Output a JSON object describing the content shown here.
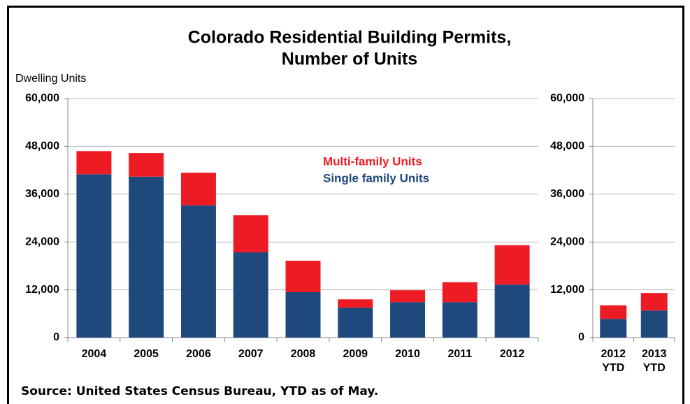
{
  "chart_data": [
    {
      "type": "stacked_bar",
      "title": [
        "Colorado Residential Building Permits,",
        "Number of Units"
      ],
      "y_label": "Dwelling Units",
      "categories": [
        "2004",
        "2005",
        "2006",
        "2007",
        "2008",
        "2009",
        "2010",
        "2011",
        "2012"
      ],
      "series": [
        {
          "name": "Single family Units",
          "color": "#1f497d",
          "values": [
            41000,
            40400,
            33200,
            21400,
            11400,
            7500,
            8900,
            8900,
            13300
          ]
        },
        {
          "name": "Multi-family Units",
          "color": "#ed1c24",
          "values": [
            5800,
            5900,
            8200,
            9300,
            7900,
            2100,
            3000,
            5000,
            9900
          ]
        }
      ],
      "ylim": [
        0,
        60000
      ],
      "yticks": [
        0,
        {
          "value": 12000,
          "label": "12,000"
        },
        {
          "value": 24000,
          "label": "24,000"
        },
        {
          "value": 36000,
          "label": "36,000"
        },
        {
          "value": 48000,
          "label": "48,000"
        },
        {
          "value": 60000,
          "label": "60,000"
        }
      ],
      "grid": true
    },
    {
      "type": "stacked_bar",
      "categories": [
        "2012 YTD",
        "2013 YTD"
      ],
      "series": [
        {
          "color": "#1f497d",
          "values": [
            4700,
            6800
          ]
        },
        {
          "color": "#ed1c24",
          "values": [
            3400,
            4400
          ]
        }
      ],
      "ylim": [
        0,
        60000
      ],
      "yticks": [
        0,
        {
          "value": 12000,
          "label": "12,000"
        },
        {
          "value": 24000,
          "label": "24,000"
        },
        {
          "value": 36000,
          "label": "36,000"
        },
        {
          "value": 48000,
          "label": "48,000"
        },
        {
          "value": 60000,
          "label": "60,000"
        }
      ],
      "grid": true
    }
  ],
  "source": "Source: United States Census Bureau, YTD as of May."
}
